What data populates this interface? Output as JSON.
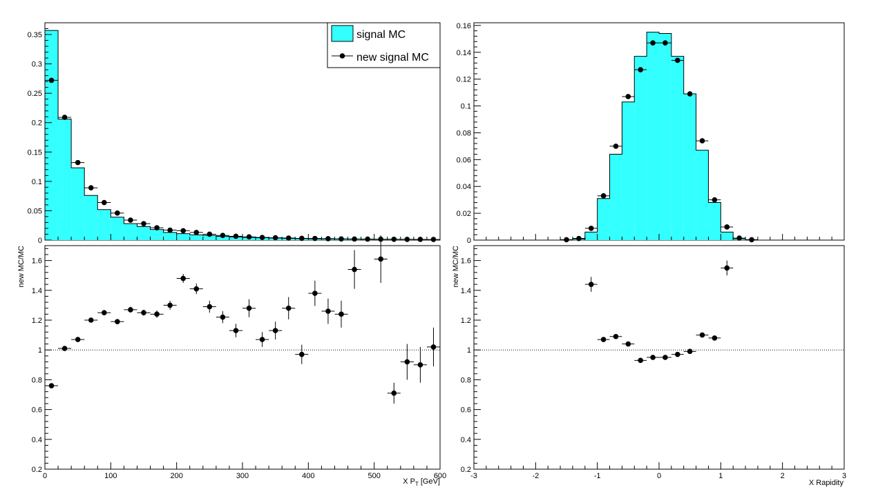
{
  "colors": {
    "fill": "#33ffff",
    "line": "#000000",
    "marker": "#000000"
  },
  "legend": {
    "entries": [
      "signal MC",
      "new signal MC"
    ],
    "placement": "top-right"
  },
  "chart_data": [
    {
      "type": "area",
      "panel": "top-left",
      "xlim": [
        0,
        600
      ],
      "ylim": [
        0,
        0.37
      ],
      "xlabel": "",
      "ylabel": "",
      "yticks": [
        0,
        0.05,
        0.1,
        0.15,
        0.2,
        0.25,
        0.3,
        0.35
      ],
      "ytick_labels": [
        "0",
        "0.05",
        "0.1",
        "0.15",
        "0.2",
        "0.25",
        "0.3",
        "0.35"
      ],
      "bin_width": 20,
      "series": [
        {
          "name": "signal MC",
          "style": "filled-histogram",
          "x": [
            10,
            30,
            50,
            70,
            90,
            110,
            130,
            150,
            170,
            190,
            210,
            230,
            250,
            270,
            290,
            310,
            330,
            350,
            370,
            390,
            410,
            430,
            450,
            470,
            490,
            510,
            530,
            550,
            570,
            590
          ],
          "values": [
            0.357,
            0.206,
            0.123,
            0.076,
            0.052,
            0.039,
            0.028,
            0.023,
            0.018,
            0.013,
            0.011,
            0.009,
            0.008,
            0.0065,
            0.0055,
            0.0045,
            0.004,
            0.0035,
            0.003,
            0.0025,
            0.002,
            0.0018,
            0.0016,
            0.0014,
            0.0012,
            0.0011,
            0.001,
            0.0009,
            0.0008,
            0.0008
          ]
        },
        {
          "name": "new signal MC",
          "style": "points",
          "x": [
            10,
            30,
            50,
            70,
            90,
            110,
            130,
            150,
            170,
            190,
            210,
            230,
            250,
            270,
            290,
            310,
            330,
            350,
            370,
            390,
            410,
            430,
            450,
            470,
            490,
            510,
            530,
            550,
            570,
            590
          ],
          "values": [
            0.272,
            0.209,
            0.132,
            0.089,
            0.064,
            0.046,
            0.034,
            0.028,
            0.021,
            0.017,
            0.016,
            0.013,
            0.01,
            0.008,
            0.0065,
            0.0055,
            0.0045,
            0.004,
            0.0035,
            0.003,
            0.0028,
            0.0024,
            0.002,
            0.0019,
            0.0017,
            0.0015,
            0.0014,
            0.0013,
            0.0012,
            0.0011
          ]
        }
      ]
    },
    {
      "type": "scatter",
      "panel": "bottom-left",
      "xlim": [
        0,
        600
      ],
      "ylim": [
        0.2,
        1.7
      ],
      "xlabel": "X P",
      "xlabel_sub": "T",
      "xlabel_unit": " [GeV]",
      "ylabel": "new MC/MC",
      "xticks": [
        0,
        100,
        200,
        300,
        400,
        500,
        600
      ],
      "xtick_labels": [
        "0",
        "100",
        "200",
        "300",
        "400",
        "500",
        "600"
      ],
      "yticks": [
        0.2,
        0.4,
        0.6,
        0.8,
        1.0,
        1.2,
        1.4,
        1.6
      ],
      "ytick_labels": [
        "0.2",
        "0.4",
        "0.6",
        "0.8",
        "1",
        "1.2",
        "1.4",
        "1.6"
      ],
      "reference_line": 1.0,
      "bin_width": 20,
      "series": [
        {
          "name": "new MC/MC",
          "x": [
            10,
            30,
            50,
            70,
            90,
            110,
            130,
            150,
            170,
            190,
            210,
            230,
            250,
            270,
            290,
            310,
            330,
            350,
            370,
            390,
            410,
            430,
            450,
            470,
            510,
            530,
            550,
            570,
            590
          ],
          "values": [
            0.76,
            1.01,
            1.07,
            1.2,
            1.25,
            1.19,
            1.27,
            1.25,
            1.24,
            1.3,
            1.48,
            1.41,
            1.29,
            1.22,
            1.13,
            1.28,
            1.07,
            1.13,
            1.28,
            0.97,
            1.38,
            1.26,
            1.24,
            1.54,
            1.61,
            0.71,
            0.92,
            0.9,
            1.02
          ],
          "errors": [
            0.01,
            0.01,
            0.01,
            0.015,
            0.015,
            0.015,
            0.02,
            0.02,
            0.025,
            0.03,
            0.03,
            0.035,
            0.04,
            0.04,
            0.045,
            0.06,
            0.05,
            0.06,
            0.075,
            0.065,
            0.085,
            0.085,
            0.09,
            0.13,
            0.16,
            0.07,
            0.12,
            0.12,
            0.13
          ]
        }
      ]
    },
    {
      "type": "area",
      "panel": "top-right",
      "xlim": [
        -3,
        3
      ],
      "ylim": [
        0,
        0.162
      ],
      "xlabel": "",
      "ylabel": "",
      "yticks": [
        0,
        0.02,
        0.04,
        0.06,
        0.08,
        0.1,
        0.12,
        0.14,
        0.16
      ],
      "ytick_labels": [
        "0",
        "0.02",
        "0.04",
        "0.06",
        "0.08",
        "0.1",
        "0.12",
        "0.14",
        "0.16"
      ],
      "bin_width": 0.2,
      "series": [
        {
          "name": "signal MC",
          "style": "filled-histogram",
          "x": [
            -1.5,
            -1.3,
            -1.1,
            -0.9,
            -0.7,
            -0.5,
            -0.3,
            -0.1,
            0.1,
            0.3,
            0.5,
            0.7,
            0.9,
            1.1,
            1.3,
            1.5
          ],
          "values": [
            0.0002,
            0.0008,
            0.006,
            0.031,
            0.064,
            0.103,
            0.137,
            0.155,
            0.154,
            0.137,
            0.109,
            0.067,
            0.028,
            0.006,
            0.0009,
            0.0002
          ]
        },
        {
          "name": "new signal MC",
          "style": "points",
          "x": [
            -1.5,
            -1.3,
            -1.1,
            -0.9,
            -0.7,
            -0.5,
            -0.3,
            -0.1,
            0.1,
            0.3,
            0.5,
            0.7,
            0.9,
            1.1,
            1.3,
            1.5
          ],
          "values": [
            0.0003,
            0.0012,
            0.0088,
            0.033,
            0.07,
            0.107,
            0.127,
            0.147,
            0.147,
            0.134,
            0.109,
            0.074,
            0.03,
            0.0098,
            0.0015,
            0.0003
          ]
        }
      ]
    },
    {
      "type": "scatter",
      "panel": "bottom-right",
      "xlim": [
        -3,
        3
      ],
      "ylim": [
        0.2,
        1.7
      ],
      "xlabel": "X Rapidity",
      "ylabel": "new MC/MC",
      "xticks": [
        -3,
        -2,
        -1,
        0,
        1,
        2,
        3
      ],
      "xtick_labels": [
        "-3",
        "-2",
        "-1",
        "0",
        "1",
        "2",
        "3"
      ],
      "yticks": [
        0.2,
        0.4,
        0.6,
        0.8,
        1.0,
        1.2,
        1.4,
        1.6
      ],
      "ytick_labels": [
        "0.2",
        "0.4",
        "0.6",
        "0.8",
        "1",
        "1.2",
        "1.4",
        "1.6"
      ],
      "reference_line": 1.0,
      "bin_width": 0.2,
      "series": [
        {
          "name": "new MC/MC",
          "x": [
            -1.1,
            -0.9,
            -0.7,
            -0.5,
            -0.3,
            -0.1,
            0.1,
            0.3,
            0.5,
            0.7,
            0.9,
            1.1
          ],
          "values": [
            1.44,
            1.07,
            1.09,
            1.04,
            0.93,
            0.95,
            0.95,
            0.97,
            0.99,
            1.1,
            1.08,
            1.55
          ],
          "errors": [
            0.05,
            0.012,
            0.01,
            0.01,
            0.008,
            0.007,
            0.007,
            0.008,
            0.009,
            0.01,
            0.013,
            0.05
          ]
        }
      ]
    }
  ]
}
